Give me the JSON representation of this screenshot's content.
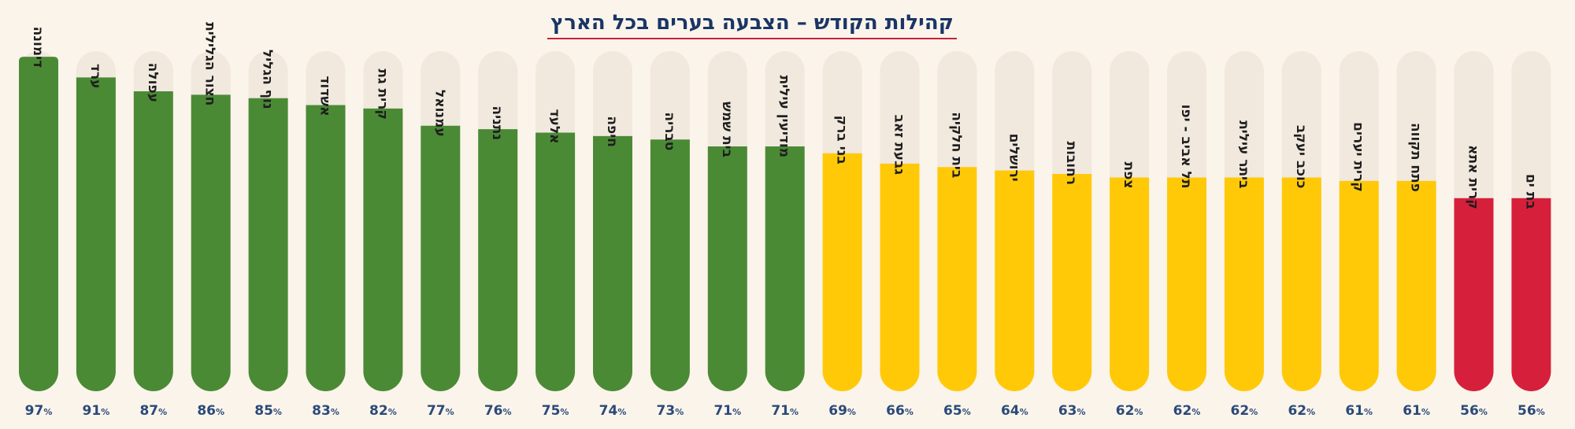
{
  "chart_data": {
    "type": "bar",
    "title": "קהילות הקודש – הצבעה בערים בכל הארץ",
    "unit": "%",
    "ylim": [
      0,
      100
    ],
    "colors": {
      "green": "#4a8a35",
      "yellow": "#ffc908",
      "red": "#d61f3b",
      "track": "#f1e8de"
    },
    "bars": [
      {
        "city": "דימונה",
        "value": 97,
        "color": "green"
      },
      {
        "city": "ערד",
        "value": 91,
        "color": "green"
      },
      {
        "city": "עפולה",
        "value": 87,
        "color": "green"
      },
      {
        "city": "חצור הגלילית",
        "value": 86,
        "color": "green"
      },
      {
        "city": "נוף הגליל",
        "value": 85,
        "color": "green"
      },
      {
        "city": "אשדוד",
        "value": 83,
        "color": "green"
      },
      {
        "city": "קרית גת",
        "value": 82,
        "color": "green"
      },
      {
        "city": "עמנואל",
        "value": 77,
        "color": "green"
      },
      {
        "city": "נתניה",
        "value": 76,
        "color": "green"
      },
      {
        "city": "אלעד",
        "value": 75,
        "color": "green"
      },
      {
        "city": "חיפה",
        "value": 74,
        "color": "green"
      },
      {
        "city": "טבריה",
        "value": 73,
        "color": "green"
      },
      {
        "city": "בית שמש",
        "value": 71,
        "color": "green"
      },
      {
        "city": "מודיעין עילית",
        "value": 71,
        "color": "green"
      },
      {
        "city": "בני ברק",
        "value": 69,
        "color": "yellow"
      },
      {
        "city": "גבעת זאב",
        "value": 66,
        "color": "yellow"
      },
      {
        "city": "בית חלקיה",
        "value": 65,
        "color": "yellow"
      },
      {
        "city": "ירושלים",
        "value": 64,
        "color": "yellow"
      },
      {
        "city": "רחובות",
        "value": 63,
        "color": "yellow"
      },
      {
        "city": "צפת",
        "value": 62,
        "color": "yellow"
      },
      {
        "city": "תל אביב - יפו",
        "value": 62,
        "color": "yellow"
      },
      {
        "city": "ביתר עילית",
        "value": 62,
        "color": "yellow"
      },
      {
        "city": "כוכב יעקב",
        "value": 62,
        "color": "yellow"
      },
      {
        "city": "קרית יערים",
        "value": 61,
        "color": "yellow"
      },
      {
        "city": "פתח תקווה",
        "value": 61,
        "color": "yellow"
      },
      {
        "city": "קרית אתא",
        "value": 56,
        "color": "red"
      },
      {
        "city": "בת ים",
        "value": 56,
        "color": "red"
      }
    ]
  }
}
